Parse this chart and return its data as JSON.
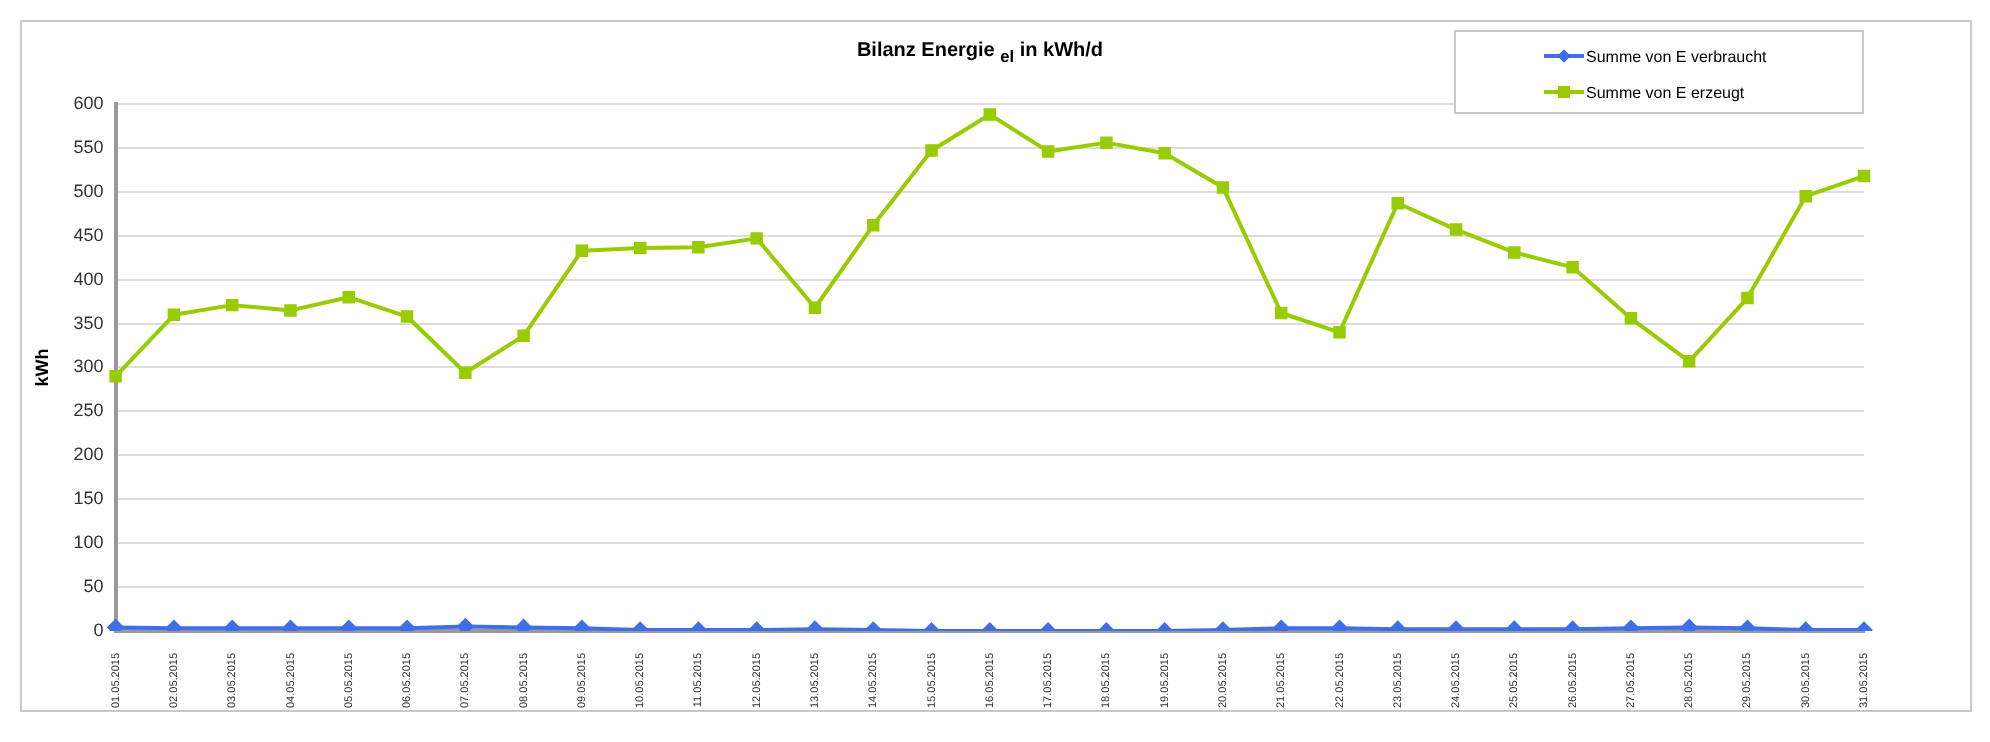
{
  "chart_data": {
    "type": "line",
    "title": "Bilanz Energie $_{el}$ in kWh/d",
    "ylabel": "kWh",
    "categories": [
      "01.05.2015",
      "02.05.2015",
      "03.05.2015",
      "04.05.2015",
      "05.05.2015",
      "06.05.2015",
      "07.05.2015",
      "08.05.2015",
      "09.05.2015",
      "10.05.2015",
      "11.05.2015",
      "12.05.2015",
      "13.05.2015",
      "14.05.2015",
      "15.05.2015",
      "16.05.2015",
      "17.05.2015",
      "18.05.2015",
      "19.05.2015",
      "20.05.2015",
      "21.05.2015",
      "22.05.2015",
      "23.05.2015",
      "24.05.2015",
      "25.05.2015",
      "26.05.2015",
      "27.05.2015",
      "28.05.2015",
      "29.05.2015",
      "30.05.2015",
      "31.05.2015"
    ],
    "series": [
      {
        "name": "Summe von E verbraucht",
        "color": "#3f6fe8",
        "marker": "diamond",
        "values": [
          4,
          3,
          3,
          3,
          3,
          3,
          5,
          4,
          3,
          1,
          1,
          1,
          2,
          1,
          0,
          0,
          0,
          0,
          0,
          1,
          3,
          3,
          2,
          2,
          2,
          2,
          3,
          4,
          3,
          1,
          1
        ]
      },
      {
        "name": "Summe von E erzeugt",
        "color": "#99cc00",
        "marker": "square",
        "values": [
          290,
          360,
          371,
          365,
          380,
          358,
          294,
          336,
          433,
          436,
          437,
          447,
          368,
          462,
          547,
          588,
          546,
          556,
          544,
          505,
          362,
          340,
          487,
          457,
          431,
          414,
          356,
          307,
          379,
          495,
          518
        ]
      }
    ],
    "ylim": [
      0,
      600
    ],
    "yticks": [
      0,
      50,
      100,
      150,
      200,
      250,
      300,
      350,
      400,
      450,
      500,
      550,
      600
    ],
    "grid": "y",
    "legend": "top right"
  }
}
